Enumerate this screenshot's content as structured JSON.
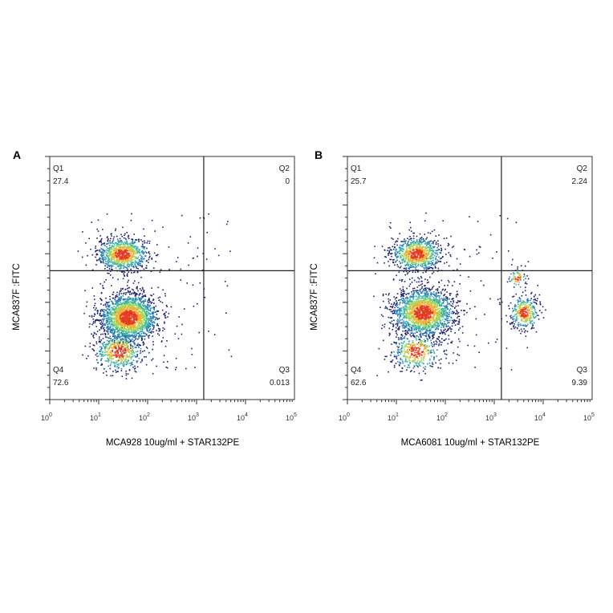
{
  "chart_data": [
    {
      "panel": "A",
      "type": "scatter",
      "subtype": "flow-cytometry-density-plot",
      "xlabel": "MCA928 10ug/ml + STAR132PE",
      "ylabel": "MCA837F :FITC",
      "x_scale": "log",
      "xlim": [
        1,
        100000
      ],
      "x_ticks": [
        {
          "value": 1,
          "base": "10",
          "exp": "0"
        },
        {
          "value": 10,
          "base": "10",
          "exp": "1"
        },
        {
          "value": 100,
          "base": "10",
          "exp": "2"
        },
        {
          "value": 1000,
          "base": "10",
          "exp": "3"
        },
        {
          "value": 10000,
          "base": "10",
          "exp": "4"
        },
        {
          "value": 100000,
          "base": "10",
          "exp": "5"
        }
      ],
      "y_tick_labels_shown": false,
      "quadrant_gate": {
        "x": 1400,
        "y_frac": 0.53
      },
      "quadrants": [
        {
          "name": "Q1",
          "percent": "27.4",
          "position": "top-left"
        },
        {
          "name": "Q2",
          "percent": "0",
          "position": "top-right"
        },
        {
          "name": "Q3",
          "percent": "0.013",
          "position": "bottom-right"
        },
        {
          "name": "Q4",
          "percent": "72.6",
          "position": "bottom-left"
        }
      ],
      "populations": [
        {
          "x_center": 30,
          "y_frac": 0.6,
          "log_spread_x": 0.26,
          "y_spread": 0.035,
          "count": 900
        },
        {
          "x_center": 40,
          "y_frac": 0.34,
          "log_spread_x": 0.3,
          "y_spread": 0.05,
          "count": 2000
        },
        {
          "x_center": 25,
          "y_frac": 0.2,
          "log_spread_x": 0.25,
          "y_spread": 0.04,
          "count": 500
        }
      ]
    },
    {
      "panel": "B",
      "type": "scatter",
      "subtype": "flow-cytometry-density-plot",
      "xlabel": "MCA6081 10ug/ml + STAR132PE",
      "ylabel": "MCA837F :FITC",
      "x_scale": "log",
      "xlim": [
        1,
        100000
      ],
      "x_ticks": [
        {
          "value": 1,
          "base": "10",
          "exp": "0"
        },
        {
          "value": 10,
          "base": "10",
          "exp": "1"
        },
        {
          "value": 100,
          "base": "10",
          "exp": "2"
        },
        {
          "value": 1000,
          "base": "10",
          "exp": "3"
        },
        {
          "value": 10000,
          "base": "10",
          "exp": "4"
        },
        {
          "value": 100000,
          "base": "10",
          "exp": "5"
        }
      ],
      "y_tick_labels_shown": false,
      "quadrant_gate": {
        "x": 1400,
        "y_frac": 0.53
      },
      "quadrants": [
        {
          "name": "Q1",
          "percent": "25.7",
          "position": "top-left"
        },
        {
          "name": "Q2",
          "percent": "2.24",
          "position": "top-right"
        },
        {
          "name": "Q3",
          "percent": "9.39",
          "position": "bottom-right"
        },
        {
          "name": "Q4",
          "percent": "62.6",
          "position": "bottom-left"
        }
      ],
      "populations": [
        {
          "x_center": 25,
          "y_frac": 0.6,
          "log_spread_x": 0.26,
          "y_spread": 0.035,
          "count": 850
        },
        {
          "x_center": 35,
          "y_frac": 0.36,
          "log_spread_x": 0.32,
          "y_spread": 0.05,
          "count": 1800
        },
        {
          "x_center": 25,
          "y_frac": 0.2,
          "log_spread_x": 0.25,
          "y_spread": 0.04,
          "count": 400
        },
        {
          "x_center": 4000,
          "y_frac": 0.36,
          "log_spread_x": 0.15,
          "y_spread": 0.035,
          "count": 350
        },
        {
          "x_center": 3000,
          "y_frac": 0.5,
          "log_spread_x": 0.1,
          "y_spread": 0.02,
          "count": 70
        }
      ]
    }
  ],
  "colors": {
    "low_density": "#1c1f6e",
    "mid_low": "#2a7fb8",
    "mid": "#3fb7a2",
    "mid_high": "#a3d65c",
    "high": "#f0b030",
    "peak": "#e53a1e",
    "axis": "#333333"
  }
}
